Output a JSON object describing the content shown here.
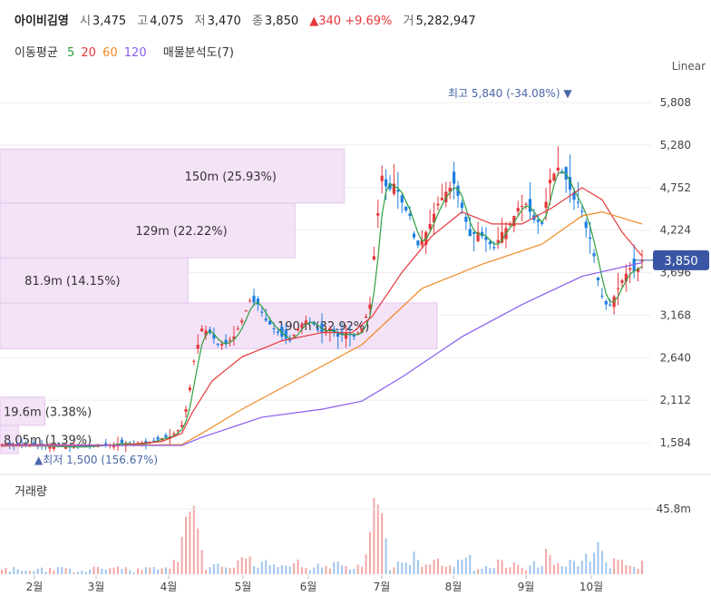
{
  "header": {
    "name": "아이비김영",
    "open_label": "시",
    "open": "3,475",
    "high_label": "고",
    "high": "4,075",
    "low_label": "저",
    "low": "3,470",
    "close_label": "종",
    "close": "3,850",
    "change": "▲340 +9.69%",
    "volume_label": "거",
    "volume": "5,282,947"
  },
  "indicators": {
    "ma_label": "이동평균",
    "ma": [
      {
        "period": "5",
        "color": "#2e9e3e"
      },
      {
        "period": "20",
        "color": "#e5383b"
      },
      {
        "period": "60",
        "color": "#f08a24"
      },
      {
        "period": "120",
        "color": "#8a5cf0"
      }
    ],
    "volume_profile_label": "매물분석도(7)"
  },
  "scale_label": "Linear",
  "volume_title": "거래량",
  "chart_data": {
    "type": "candlestick",
    "ylim": [
      1300,
      6050
    ],
    "y_ticks": [
      "5,808",
      "5,280",
      "4,752",
      "4,224",
      "3,696",
      "3,168",
      "2,640",
      "2,112",
      "1,584"
    ],
    "x_labels": [
      "2월",
      "3월",
      "4월",
      "5월",
      "6월",
      "7월",
      "8월",
      "9월",
      "10월"
    ],
    "current_price": "3,850",
    "high_annotation": "최고 5,840 (-34.08%)",
    "low_annotation": "최저 1,500 (156.67%)",
    "volume_tick": "45.8m",
    "volume_profile": [
      {
        "label": "8.05m (1.39%)",
        "low": 1450,
        "high": 1800,
        "share": 1.39
      },
      {
        "label": "19.6m (3.38%)",
        "low": 1800,
        "high": 2150,
        "share": 3.38
      },
      {
        "label": "190m (32.92%)",
        "low": 2750,
        "high": 3320,
        "share": 32.92
      },
      {
        "label": "81.9m (14.15%)",
        "low": 3320,
        "high": 3880,
        "share": 14.15
      },
      {
        "label": "129m (22.22%)",
        "low": 3880,
        "high": 4560,
        "share": 22.22
      },
      {
        "label": "150m (25.93%)",
        "low": 4560,
        "high": 5230,
        "share": 25.93
      }
    ],
    "price_path": [
      [
        0,
        1560
      ],
      [
        20,
        1540
      ],
      [
        40,
        1530
      ],
      [
        55,
        1560
      ],
      [
        60,
        1580
      ],
      [
        65,
        1560
      ],
      [
        70,
        1570
      ],
      [
        75,
        1600
      ],
      [
        80,
        1640
      ],
      [
        84,
        1660
      ],
      [
        88,
        1740
      ],
      [
        90,
        1800
      ],
      [
        93,
        2100
      ],
      [
        96,
        2600
      ],
      [
        100,
        3000
      ],
      [
        104,
        2950
      ],
      [
        108,
        2800
      ],
      [
        112,
        2820
      ],
      [
        116,
        2900
      ],
      [
        120,
        3100
      ],
      [
        124,
        3350
      ],
      [
        128,
        3300
      ],
      [
        132,
        3100
      ],
      [
        136,
        3000
      ],
      [
        140,
        2900
      ],
      [
        144,
        2850
      ],
      [
        148,
        3000
      ],
      [
        152,
        3100
      ],
      [
        156,
        3050
      ],
      [
        160,
        2950
      ],
      [
        164,
        3000
      ],
      [
        168,
        2900
      ],
      [
        172,
        2950
      ],
      [
        176,
        2900
      ],
      [
        180,
        3000
      ],
      [
        184,
        3300
      ],
      [
        187,
        4200
      ],
      [
        190,
        4900
      ],
      [
        193,
        4700
      ],
      [
        196,
        4800
      ],
      [
        198,
        4700
      ],
      [
        201,
        4500
      ],
      [
        204,
        4400
      ],
      [
        207,
        4000
      ],
      [
        210,
        4100
      ],
      [
        214,
        4300
      ],
      [
        218,
        4550
      ],
      [
        222,
        4700
      ],
      [
        226,
        4800
      ],
      [
        230,
        4500
      ],
      [
        234,
        4150
      ],
      [
        238,
        4200
      ],
      [
        242,
        4100
      ],
      [
        246,
        4000
      ],
      [
        250,
        4200
      ],
      [
        254,
        4300
      ],
      [
        258,
        4500
      ],
      [
        262,
        4550
      ],
      [
        266,
        4350
      ],
      [
        270,
        4300
      ],
      [
        274,
        4850
      ],
      [
        278,
        5000
      ],
      [
        282,
        4850
      ],
      [
        286,
        4600
      ],
      [
        289,
        4550
      ],
      [
        292,
        4250
      ],
      [
        295,
        4050
      ],
      [
        298,
        3600
      ],
      [
        301,
        3300
      ],
      [
        304,
        3300
      ],
      [
        306,
        3400
      ],
      [
        308,
        3500
      ],
      [
        311,
        3650
      ],
      [
        314,
        3750
      ],
      [
        317,
        3700
      ],
      [
        320,
        3850
      ]
    ],
    "ma20": [
      [
        0,
        1560
      ],
      [
        60,
        1555
      ],
      [
        80,
        1600
      ],
      [
        90,
        1700
      ],
      [
        95,
        1950
      ],
      [
        105,
        2350
      ],
      [
        120,
        2650
      ],
      [
        140,
        2850
      ],
      [
        160,
        2950
      ],
      [
        175,
        2950
      ],
      [
        185,
        3150
      ],
      [
        200,
        3700
      ],
      [
        215,
        4150
      ],
      [
        230,
        4450
      ],
      [
        245,
        4300
      ],
      [
        260,
        4300
      ],
      [
        275,
        4500
      ],
      [
        290,
        4750
      ],
      [
        300,
        4600
      ],
      [
        310,
        4200
      ],
      [
        320,
        3900
      ]
    ],
    "ma60": [
      [
        0,
        1540
      ],
      [
        90,
        1560
      ],
      [
        100,
        1700
      ],
      [
        120,
        2000
      ],
      [
        150,
        2400
      ],
      [
        180,
        2800
      ],
      [
        195,
        3150
      ],
      [
        210,
        3500
      ],
      [
        240,
        3800
      ],
      [
        270,
        4050
      ],
      [
        290,
        4400
      ],
      [
        300,
        4450
      ],
      [
        320,
        4300
      ]
    ],
    "ma120": [
      [
        0,
        1550
      ],
      [
        90,
        1550
      ],
      [
        100,
        1650
      ],
      [
        130,
        1900
      ],
      [
        160,
        2000
      ],
      [
        180,
        2100
      ],
      [
        200,
        2400
      ],
      [
        230,
        2900
      ],
      [
        260,
        3300
      ],
      [
        290,
        3650
      ],
      [
        320,
        3820
      ]
    ]
  }
}
